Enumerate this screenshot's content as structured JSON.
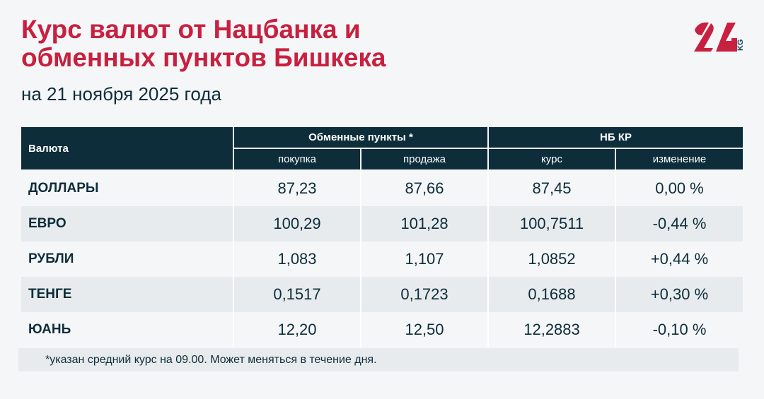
{
  "title_line1": "Курс валют от Нацбанка и",
  "title_line2": "обменных пунктов Бишкека",
  "subtitle": "на 21 ноября 2025 года",
  "logo": "24 KG",
  "colors": {
    "accent": "#c8203f",
    "header": "#0d2d3b",
    "row_alt": "#e8ebed",
    "background": "#f5f6f8"
  },
  "table": {
    "col_currency": "Валюта",
    "group_exchange": "Обменные пункты *",
    "group_nb": "НБ КР",
    "sub_buy": "покупка",
    "sub_sell": "продажа",
    "sub_rate": "курс",
    "sub_change": "изменение",
    "rows": [
      {
        "name": "ДОЛЛАРЫ",
        "buy": "87,23",
        "sell": "87,66",
        "rate": "87,45",
        "change": "0,00 %"
      },
      {
        "name": "ЕВРО",
        "buy": "100,29",
        "sell": "101,28",
        "rate": "100,7511",
        "change": "-0,44 %"
      },
      {
        "name": "РУБЛИ",
        "buy": "1,083",
        "sell": "1,107",
        "rate": "1,0852",
        "change": "+0,44 %"
      },
      {
        "name": "ТЕНГЕ",
        "buy": "0,1517",
        "sell": "0,1723",
        "rate": "0,1688",
        "change": "+0,30 %"
      },
      {
        "name": "ЮАНЬ",
        "buy": "12,20",
        "sell": "12,50",
        "rate": "12,2883",
        "change": "-0,10 %"
      }
    ]
  },
  "footnote": "*указан средний курс на 09.00. Может меняться в течение дня."
}
